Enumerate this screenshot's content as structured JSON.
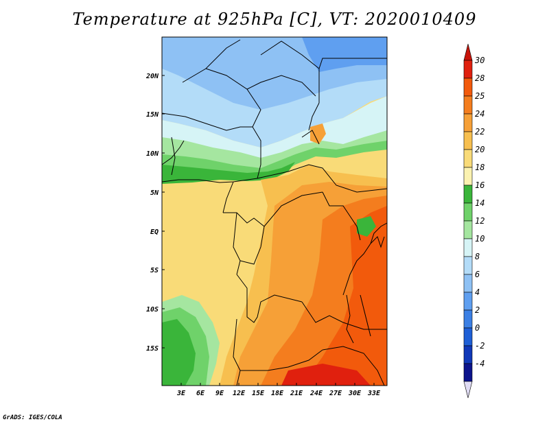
{
  "title": "Temperature at 925hPa [C], VT: 2020010409",
  "footer": "GrADS: IGES/COLA",
  "map": {
    "lat_labels": [
      "20N",
      "15N",
      "10N",
      "5N",
      "EQ",
      "5S",
      "10S",
      "15S"
    ],
    "lon_labels": [
      "3E",
      "6E",
      "9E",
      "12E",
      "15E",
      "18E",
      "21E",
      "24E",
      "27E",
      "30E",
      "33E"
    ]
  },
  "colorbar": {
    "labels": [
      "30",
      "28",
      "25",
      "24",
      "22",
      "20",
      "18",
      "16",
      "14",
      "12",
      "10",
      "8",
      "6",
      "4",
      "2",
      "0",
      "-2",
      "-4"
    ],
    "colors": [
      "#e0200e",
      "#f25a0c",
      "#f47d1e",
      "#f6a037",
      "#f7bf4f",
      "#f9db78",
      "#fbf2b0",
      "#3ab53a",
      "#6fd26a",
      "#a5e6a0",
      "#d6f4f6",
      "#b3dcf8",
      "#8ec1f4",
      "#5f9ff0",
      "#3b7fe4",
      "#1e5fd6",
      "#1038b8",
      "#0c148c"
    ],
    "top_arrow_color": "#c8140a",
    "bottom_arrow_color": "#e0dcf4"
  }
}
